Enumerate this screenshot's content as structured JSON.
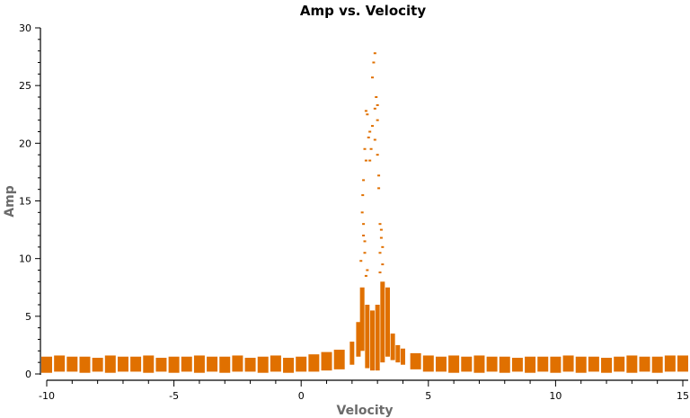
{
  "chart_data": {
    "type": "scatter",
    "title": "Amp vs. Velocity",
    "xlabel": "Velocity",
    "ylabel": "Amp",
    "xlim": [
      -10,
      15
    ],
    "ylim": [
      0,
      30
    ],
    "xticks": [
      "-10",
      "-5",
      "0",
      "5",
      "10",
      "15"
    ],
    "yticks": [
      "0",
      "5",
      "10",
      "15",
      "20",
      "25",
      "30"
    ],
    "grid": false,
    "color": "#e07000",
    "channel_ranges": [
      [
        -10,
        0.1,
        1.5
      ],
      [
        -9.5,
        0.2,
        1.6
      ],
      [
        -9,
        0.2,
        1.5
      ],
      [
        -8.5,
        0.1,
        1.5
      ],
      [
        -8,
        0.2,
        1.4
      ],
      [
        -7.5,
        0.1,
        1.6
      ],
      [
        -7,
        0.2,
        1.5
      ],
      [
        -6.5,
        0.2,
        1.5
      ],
      [
        -6,
        0.1,
        1.6
      ],
      [
        -5.5,
        0.2,
        1.4
      ],
      [
        -5,
        0.1,
        1.5
      ],
      [
        -4.5,
        0.2,
        1.5
      ],
      [
        -4,
        0.1,
        1.6
      ],
      [
        -3.5,
        0.2,
        1.5
      ],
      [
        -3,
        0.1,
        1.5
      ],
      [
        -2.5,
        0.2,
        1.6
      ],
      [
        -2,
        0.2,
        1.4
      ],
      [
        -1.5,
        0.1,
        1.5
      ],
      [
        -1,
        0.2,
        1.6
      ],
      [
        -0.5,
        0.1,
        1.4
      ],
      [
        0,
        0.2,
        1.5
      ],
      [
        0.5,
        0.2,
        1.7
      ],
      [
        1,
        0.3,
        1.9
      ],
      [
        1.5,
        0.4,
        2.1
      ],
      [
        2,
        0.8,
        2.8
      ],
      [
        2.25,
        1.5,
        4.5
      ],
      [
        2.4,
        2.0,
        7.5
      ],
      [
        2.6,
        0.5,
        6.0
      ],
      [
        2.8,
        0.3,
        5.5
      ],
      [
        3.0,
        0.3,
        6.0
      ],
      [
        3.2,
        1.0,
        8.0
      ],
      [
        3.4,
        1.5,
        7.5
      ],
      [
        3.6,
        1.2,
        3.5
      ],
      [
        3.8,
        1.0,
        2.5
      ],
      [
        4.0,
        0.8,
        2.2
      ],
      [
        4.5,
        0.4,
        1.8
      ],
      [
        5,
        0.2,
        1.6
      ],
      [
        5.5,
        0.2,
        1.5
      ],
      [
        6,
        0.1,
        1.6
      ],
      [
        6.5,
        0.2,
        1.5
      ],
      [
        7,
        0.1,
        1.6
      ],
      [
        7.5,
        0.2,
        1.5
      ],
      [
        8,
        0.1,
        1.5
      ],
      [
        8.5,
        0.2,
        1.4
      ],
      [
        9,
        0.1,
        1.5
      ],
      [
        9.5,
        0.2,
        1.5
      ],
      [
        10,
        0.1,
        1.5
      ],
      [
        10.5,
        0.2,
        1.6
      ],
      [
        11,
        0.1,
        1.5
      ],
      [
        11.5,
        0.2,
        1.5
      ],
      [
        12,
        0.1,
        1.4
      ],
      [
        12.5,
        0.2,
        1.5
      ],
      [
        13,
        0.1,
        1.6
      ],
      [
        13.5,
        0.2,
        1.5
      ],
      [
        14,
        0.1,
        1.5
      ],
      [
        14.5,
        0.2,
        1.6
      ],
      [
        15,
        0.2,
        1.6
      ]
    ],
    "points": [
      [
        2.45,
        12
      ],
      [
        2.5,
        10.5
      ],
      [
        2.42,
        15.5
      ],
      [
        2.45,
        16.8
      ],
      [
        2.5,
        19.5
      ],
      [
        2.55,
        22.8
      ],
      [
        2.6,
        22.5
      ],
      [
        2.7,
        21
      ],
      [
        2.75,
        19.5
      ],
      [
        2.8,
        25.7
      ],
      [
        2.85,
        27
      ],
      [
        2.9,
        27.8
      ],
      [
        2.95,
        24
      ],
      [
        3.0,
        22
      ],
      [
        3.05,
        17.2
      ],
      [
        3.1,
        13
      ],
      [
        3.15,
        12.5
      ],
      [
        3.2,
        11
      ],
      [
        3.0,
        19
      ],
      [
        2.7,
        18.5
      ],
      [
        2.55,
        18.5
      ],
      [
        3.1,
        10.5
      ],
      [
        2.4,
        14
      ],
      [
        2.45,
        13
      ],
      [
        3.2,
        9.5
      ],
      [
        2.6,
        9
      ],
      [
        2.9,
        23
      ],
      [
        2.65,
        20.5
      ],
      [
        3.05,
        16.1
      ],
      [
        2.5,
        11.5
      ],
      [
        3.15,
        11.8
      ],
      [
        2.55,
        8.5
      ],
      [
        3.1,
        8.8
      ],
      [
        2.35,
        9.8
      ],
      [
        2.8,
        21.5
      ],
      [
        2.9,
        20.3
      ],
      [
        3.0,
        23.3
      ]
    ]
  }
}
